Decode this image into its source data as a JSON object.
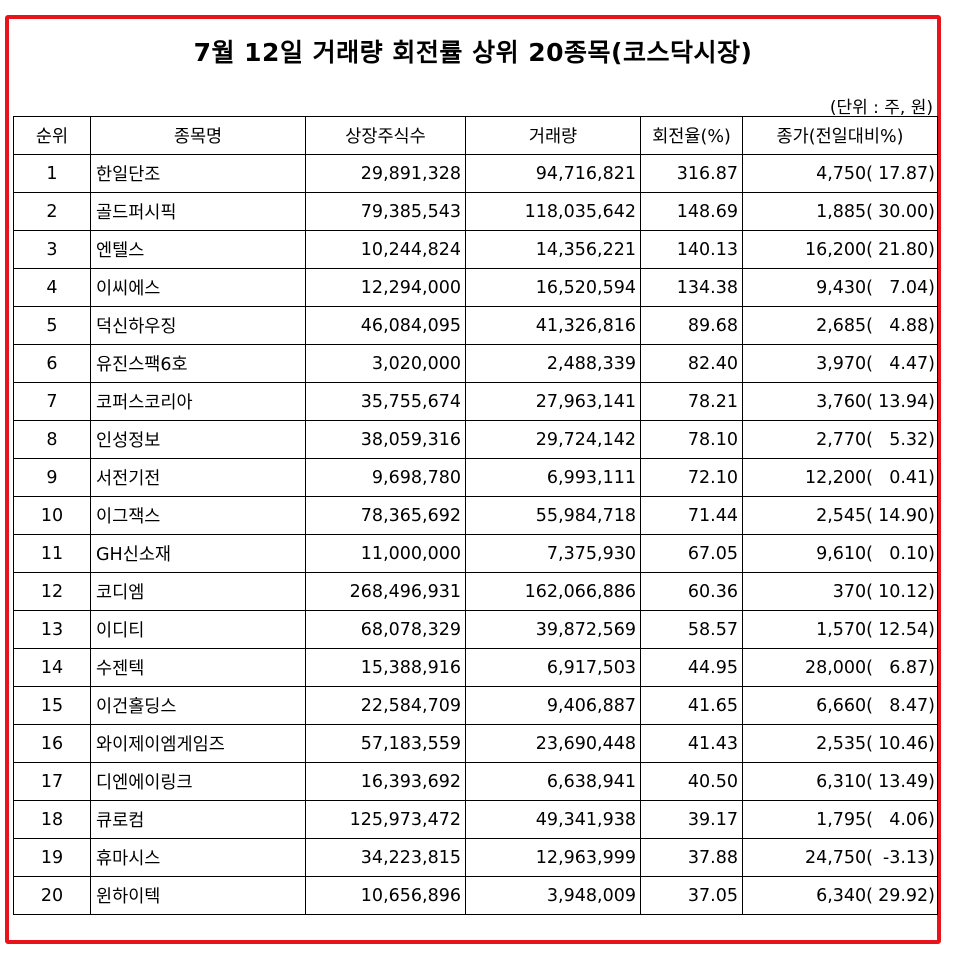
{
  "title": "7월 12일 거래량 회전률 상위 20종목(코스닥시장)",
  "unit_note": "(단위 : 주, 원)",
  "colors": {
    "frame_border": "#e8141b"
  },
  "table": {
    "headers": [
      "순위",
      "종목명",
      "상장주식수",
      "거래량",
      "회전율(%)",
      "종가(전일대비%)"
    ],
    "rows": [
      {
        "rank": "1",
        "name": "한일단조",
        "listed": "29,891,328",
        "volume": "94,716,821",
        "turnover": "316.87",
        "price": "4,750(",
        "change": "17.87)"
      },
      {
        "rank": "2",
        "name": "골드퍼시픽",
        "listed": "79,385,543",
        "volume": "118,035,642",
        "turnover": "148.69",
        "price": "1,885(",
        "change": "30.00)"
      },
      {
        "rank": "3",
        "name": "엔텔스",
        "listed": "10,244,824",
        "volume": "14,356,221",
        "turnover": "140.13",
        "price": "16,200(",
        "change": "21.80)"
      },
      {
        "rank": "4",
        "name": "이씨에스",
        "listed": "12,294,000",
        "volume": "16,520,594",
        "turnover": "134.38",
        "price": "9,430(",
        "change": "7.04)"
      },
      {
        "rank": "5",
        "name": "덕신하우징",
        "listed": "46,084,095",
        "volume": "41,326,816",
        "turnover": "89.68",
        "price": "2,685(",
        "change": "4.88)"
      },
      {
        "rank": "6",
        "name": "유진스팩6호",
        "listed": "3,020,000",
        "volume": "2,488,339",
        "turnover": "82.40",
        "price": "3,970(",
        "change": "4.47)"
      },
      {
        "rank": "7",
        "name": "코퍼스코리아",
        "listed": "35,755,674",
        "volume": "27,963,141",
        "turnover": "78.21",
        "price": "3,760(",
        "change": "13.94)"
      },
      {
        "rank": "8",
        "name": "인성정보",
        "listed": "38,059,316",
        "volume": "29,724,142",
        "turnover": "78.10",
        "price": "2,770(",
        "change": "5.32)"
      },
      {
        "rank": "9",
        "name": "서전기전",
        "listed": "9,698,780",
        "volume": "6,993,111",
        "turnover": "72.10",
        "price": "12,200(",
        "change": "0.41)"
      },
      {
        "rank": "10",
        "name": "이그잭스",
        "listed": "78,365,692",
        "volume": "55,984,718",
        "turnover": "71.44",
        "price": "2,545(",
        "change": "14.90)"
      },
      {
        "rank": "11",
        "name": "GH신소재",
        "listed": "11,000,000",
        "volume": "7,375,930",
        "turnover": "67.05",
        "price": "9,610(",
        "change": "0.10)"
      },
      {
        "rank": "12",
        "name": "코디엠",
        "listed": "268,496,931",
        "volume": "162,066,886",
        "turnover": "60.36",
        "price": "370(",
        "change": "10.12)"
      },
      {
        "rank": "13",
        "name": "이디티",
        "listed": "68,078,329",
        "volume": "39,872,569",
        "turnover": "58.57",
        "price": "1,570(",
        "change": "12.54)"
      },
      {
        "rank": "14",
        "name": "수젠텍",
        "listed": "15,388,916",
        "volume": "6,917,503",
        "turnover": "44.95",
        "price": "28,000(",
        "change": "6.87)"
      },
      {
        "rank": "15",
        "name": "이건홀딩스",
        "listed": "22,584,709",
        "volume": "9,406,887",
        "turnover": "41.65",
        "price": "6,660(",
        "change": "8.47)"
      },
      {
        "rank": "16",
        "name": "와이제이엠게임즈",
        "listed": "57,183,559",
        "volume": "23,690,448",
        "turnover": "41.43",
        "price": "2,535(",
        "change": "10.46)"
      },
      {
        "rank": "17",
        "name": "디엔에이링크",
        "listed": "16,393,692",
        "volume": "6,638,941",
        "turnover": "40.50",
        "price": "6,310(",
        "change": "13.49)"
      },
      {
        "rank": "18",
        "name": "큐로컴",
        "listed": "125,973,472",
        "volume": "49,341,938",
        "turnover": "39.17",
        "price": "1,795(",
        "change": "4.06)"
      },
      {
        "rank": "19",
        "name": "휴마시스",
        "listed": "34,223,815",
        "volume": "12,963,999",
        "turnover": "37.88",
        "price": "24,750(",
        "change": "-3.13)"
      },
      {
        "rank": "20",
        "name": "윈하이텍",
        "listed": "10,656,896",
        "volume": "3,948,009",
        "turnover": "37.05",
        "price": "6,340(",
        "change": "29.92)"
      }
    ]
  }
}
